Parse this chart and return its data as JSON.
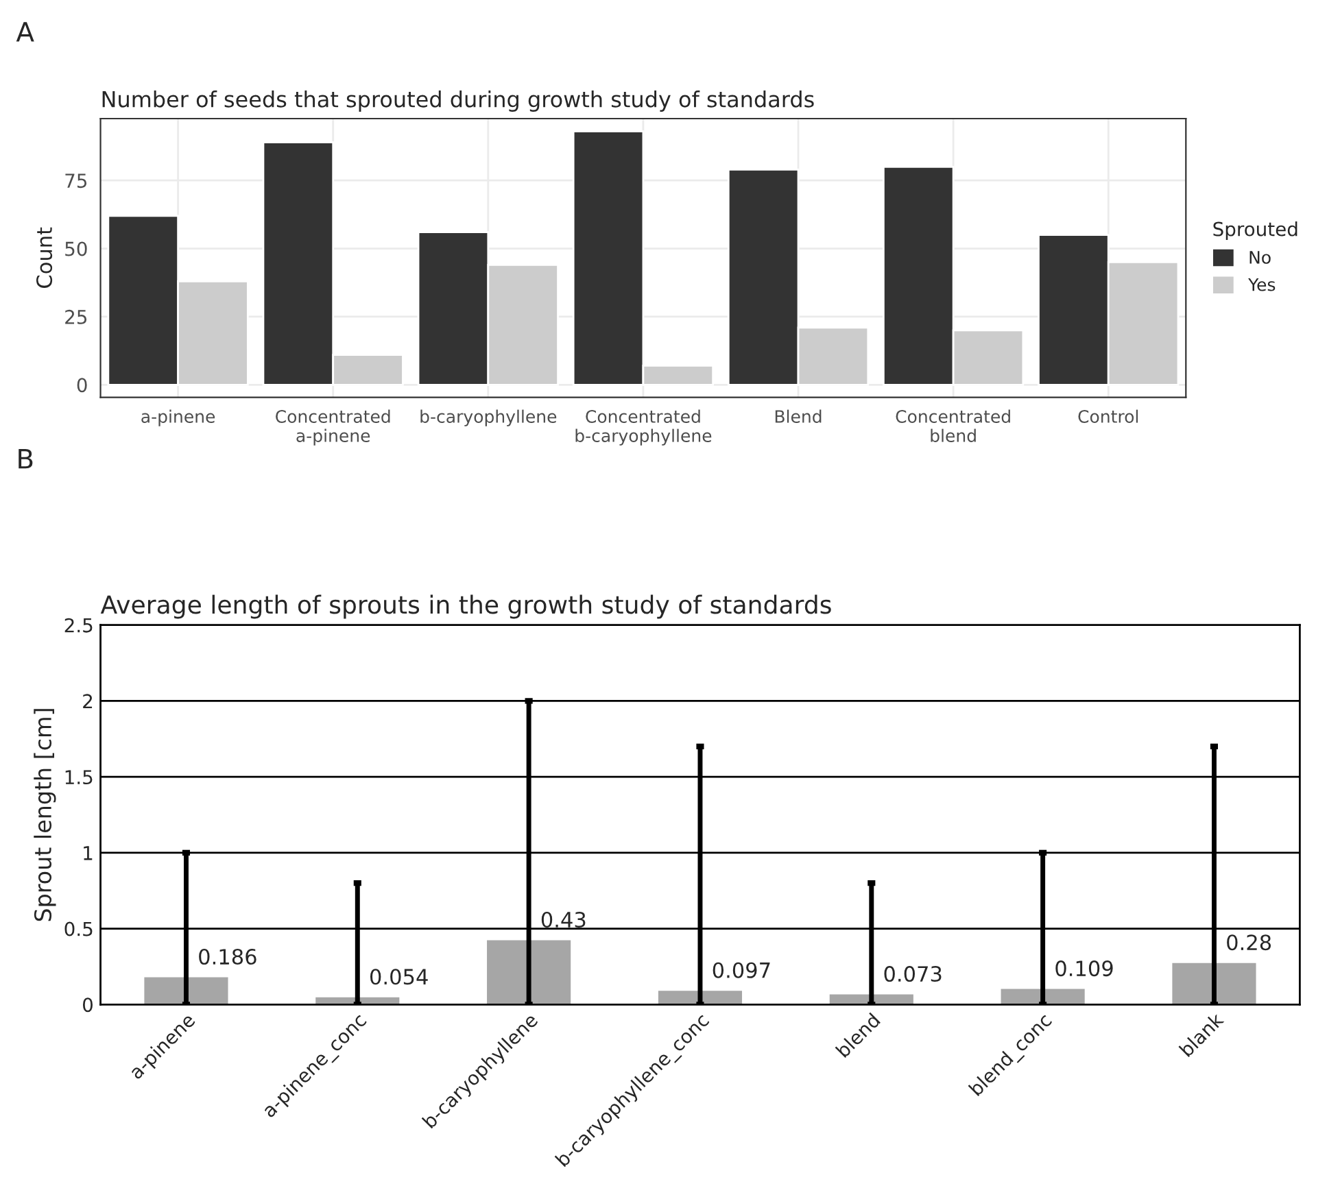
{
  "chart_data": [
    {
      "type": "bar",
      "title": "Number of seeds that sprouted during growth study of standards",
      "ylabel": "Count",
      "legend_title": "Sprouted",
      "annotations": [
        "A"
      ],
      "categories": [
        "a-pinene",
        "Concentrated\na-pinene",
        "b-caryophyllene",
        "Concentrated\nb-caryophyllene",
        "Blend",
        "Concentrated\nblend",
        "Control"
      ],
      "series": [
        {
          "name": "No",
          "color": "#333333",
          "values": [
            62,
            89,
            56,
            93,
            79,
            80,
            55
          ]
        },
        {
          "name": "Yes",
          "color": "#cccccc",
          "values": [
            38,
            11,
            44,
            7,
            21,
            20,
            45
          ]
        }
      ],
      "ylim": [
        -4.6,
        97.7
      ],
      "yticks": [
        0,
        25,
        50,
        75
      ],
      "grid": true,
      "legend": "right"
    },
    {
      "type": "bar",
      "title": "Average length of sprouts in the growth study of standards",
      "ylabel": "Sprout length [cm]",
      "annotations": [
        "B"
      ],
      "categories": [
        "a-pinene",
        "a-pinene_conc",
        "b-caryophyllene",
        "b-caryophyllene_conc",
        "blend",
        "blend_conc",
        "blank"
      ],
      "values": [
        0.186,
        0.054,
        0.43,
        0.097,
        0.073,
        0.109,
        0.28
      ],
      "color": "#a6a6a6",
      "errors": [
        [
          0,
          1.0
        ],
        [
          0,
          0.8
        ],
        [
          0,
          2.0
        ],
        [
          0,
          1.7
        ],
        [
          0,
          0.8
        ],
        [
          0,
          1.0
        ],
        [
          0,
          1.7
        ]
      ],
      "data_labels": true,
      "ylim": [
        0,
        2.5
      ],
      "yticks": [
        0,
        0.5,
        1,
        1.5,
        2,
        2.5
      ],
      "grid": "y"
    }
  ]
}
